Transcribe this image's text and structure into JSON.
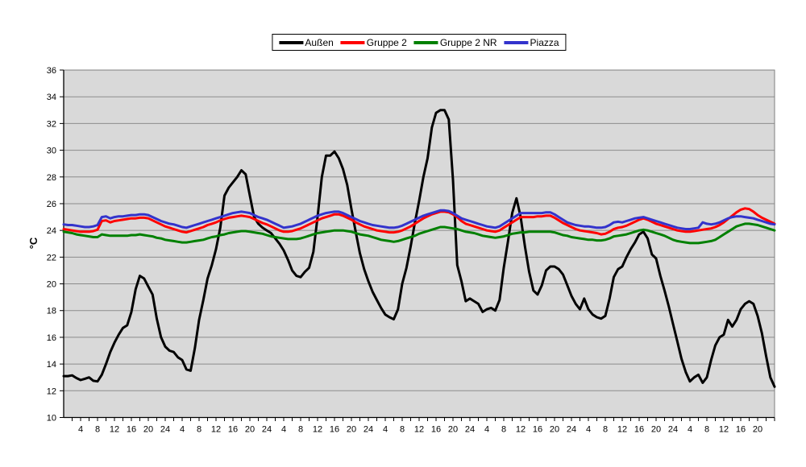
{
  "chart_data": {
    "type": "line",
    "title": "",
    "ylabel": "°C",
    "ylim": [
      10,
      36
    ],
    "ytick_step": 2,
    "xlim": [
      0,
      168
    ],
    "x_step_hours": 1,
    "x_minor_tick_hours": 2,
    "grid": "horizontal",
    "legend_position": "top-center",
    "colors": {
      "plot_bg": "#D9D9D9",
      "gridline": "#8C8C8C",
      "plot_border": "#7F7F7F",
      "axis": "#000000"
    },
    "xtick_hours": [
      4,
      8,
      12,
      16,
      20,
      24,
      28,
      32,
      36,
      40,
      44,
      48,
      52,
      56,
      60,
      64,
      68,
      72,
      76,
      80,
      84,
      88,
      92,
      96,
      100,
      104,
      108,
      112,
      116,
      120,
      124,
      128,
      132,
      136,
      140,
      144,
      148,
      152,
      156,
      160,
      164
    ],
    "xtick_labels": [
      "4",
      "8",
      "12",
      "16",
      "20",
      "24",
      "4",
      "8",
      "12",
      "16",
      "20",
      "24",
      "4",
      "8",
      "12",
      "16",
      "20",
      "24",
      "4",
      "8",
      "12",
      "16",
      "20",
      "24",
      "4",
      "8",
      "12",
      "16",
      "20",
      "24",
      "4",
      "8",
      "12",
      "16",
      "20",
      "24",
      "4",
      "8",
      "12",
      "16",
      "20"
    ],
    "ytick_labels": [
      "10",
      "12",
      "14",
      "16",
      "18",
      "20",
      "22",
      "24",
      "26",
      "28",
      "30",
      "32",
      "34",
      "36"
    ],
    "series": [
      {
        "name": "Außen",
        "color": "#000000",
        "values": [
          13.1,
          13.1,
          13.15,
          12.95,
          12.8,
          12.9,
          13.0,
          12.75,
          12.7,
          13.2,
          14.0,
          14.9,
          15.6,
          16.2,
          16.7,
          16.9,
          17.9,
          19.6,
          20.6,
          20.4,
          19.8,
          19.2,
          17.4,
          16.0,
          15.3,
          15.0,
          14.9,
          14.5,
          14.3,
          13.6,
          13.5,
          15.2,
          17.3,
          18.8,
          20.4,
          21.4,
          22.6,
          24.2,
          26.6,
          27.2,
          27.6,
          28.0,
          28.5,
          28.2,
          26.6,
          25.0,
          24.5,
          24.2,
          24.0,
          23.8,
          23.4,
          23.0,
          22.5,
          21.8,
          21.0,
          20.6,
          20.5,
          20.9,
          21.2,
          22.4,
          25.0,
          28.0,
          29.6,
          29.6,
          29.9,
          29.4,
          28.6,
          27.4,
          25.6,
          23.9,
          22.3,
          21.1,
          20.2,
          19.4,
          18.8,
          18.2,
          17.7,
          17.5,
          17.35,
          18.1,
          20.0,
          21.2,
          22.8,
          24.6,
          26.2,
          28.0,
          29.4,
          31.7,
          32.8,
          33.0,
          33.0,
          32.3,
          27.8,
          21.4,
          20.2,
          18.7,
          18.9,
          18.7,
          18.5,
          17.9,
          18.1,
          18.2,
          18.0,
          18.8,
          21.2,
          23.2,
          25.3,
          26.4,
          25.0,
          22.8,
          20.9,
          19.5,
          19.2,
          19.9,
          21.0,
          21.3,
          21.3,
          21.1,
          20.7,
          19.9,
          19.1,
          18.5,
          18.1,
          18.9,
          18.1,
          17.7,
          17.5,
          17.4,
          17.6,
          18.9,
          20.5,
          21.1,
          21.3,
          22.0,
          22.6,
          23.1,
          23.7,
          23.9,
          23.4,
          22.2,
          21.9,
          20.6,
          19.5,
          18.3,
          17.0,
          15.7,
          14.4,
          13.4,
          12.7,
          13.0,
          13.2,
          12.6,
          13.0,
          14.3,
          15.4,
          16.0,
          16.2,
          17.3,
          16.8,
          17.3,
          18.1,
          18.5,
          18.7,
          18.5,
          17.6,
          16.3,
          14.6,
          13.0,
          12.3
        ]
      },
      {
        "name": "Gruppe 2",
        "color": "#FF0000",
        "values": [
          24.1,
          24.05,
          24.0,
          23.95,
          23.9,
          23.9,
          23.9,
          23.95,
          24.05,
          24.7,
          24.75,
          24.6,
          24.7,
          24.75,
          24.8,
          24.85,
          24.9,
          24.9,
          24.95,
          24.95,
          24.9,
          24.75,
          24.6,
          24.45,
          24.3,
          24.2,
          24.1,
          24.0,
          23.9,
          23.85,
          23.95,
          24.05,
          24.15,
          24.25,
          24.4,
          24.5,
          24.6,
          24.75,
          24.85,
          24.95,
          25.0,
          25.05,
          25.1,
          25.05,
          25.0,
          24.85,
          24.7,
          24.55,
          24.45,
          24.3,
          24.15,
          24.0,
          23.9,
          23.9,
          23.95,
          24.05,
          24.15,
          24.3,
          24.45,
          24.6,
          24.75,
          24.9,
          25.0,
          25.1,
          25.2,
          25.2,
          25.1,
          24.95,
          24.8,
          24.6,
          24.45,
          24.3,
          24.2,
          24.1,
          24.0,
          23.95,
          23.9,
          23.85,
          23.85,
          23.9,
          24.0,
          24.15,
          24.3,
          24.5,
          24.7,
          24.9,
          25.05,
          25.2,
          25.3,
          25.4,
          25.4,
          25.35,
          25.2,
          25.0,
          24.7,
          24.5,
          24.4,
          24.3,
          24.2,
          24.1,
          24.0,
          23.95,
          23.9,
          24.0,
          24.2,
          24.4,
          24.6,
          24.8,
          25.0,
          25.0,
          25.0,
          25.0,
          25.05,
          25.05,
          25.1,
          25.1,
          24.95,
          24.75,
          24.55,
          24.4,
          24.25,
          24.1,
          24.0,
          23.95,
          23.9,
          23.85,
          23.8,
          23.7,
          23.75,
          23.9,
          24.1,
          24.2,
          24.25,
          24.35,
          24.5,
          24.65,
          24.8,
          24.9,
          24.8,
          24.65,
          24.5,
          24.4,
          24.3,
          24.2,
          24.1,
          24.0,
          23.95,
          23.9,
          23.9,
          23.95,
          24.0,
          24.05,
          24.1,
          24.15,
          24.25,
          24.4,
          24.6,
          24.85,
          25.1,
          25.35,
          25.55,
          25.65,
          25.6,
          25.4,
          25.15,
          24.95,
          24.8,
          24.65,
          24.5
        ]
      },
      {
        "name": "Gruppe 2 NR",
        "color": "#008000",
        "values": [
          23.9,
          23.85,
          23.8,
          23.7,
          23.65,
          23.6,
          23.55,
          23.5,
          23.5,
          23.7,
          23.65,
          23.6,
          23.6,
          23.6,
          23.6,
          23.6,
          23.65,
          23.65,
          23.7,
          23.65,
          23.6,
          23.55,
          23.45,
          23.4,
          23.3,
          23.25,
          23.2,
          23.15,
          23.1,
          23.1,
          23.15,
          23.2,
          23.25,
          23.3,
          23.4,
          23.5,
          23.55,
          23.65,
          23.7,
          23.8,
          23.85,
          23.9,
          23.95,
          23.95,
          23.9,
          23.85,
          23.8,
          23.75,
          23.65,
          23.55,
          23.5,
          23.45,
          23.4,
          23.35,
          23.35,
          23.35,
          23.4,
          23.5,
          23.6,
          23.7,
          23.8,
          23.85,
          23.9,
          23.95,
          24.0,
          24.0,
          24.0,
          23.95,
          23.9,
          23.8,
          23.7,
          23.65,
          23.6,
          23.5,
          23.4,
          23.3,
          23.25,
          23.2,
          23.15,
          23.2,
          23.3,
          23.4,
          23.5,
          23.6,
          23.75,
          23.85,
          23.95,
          24.05,
          24.15,
          24.25,
          24.25,
          24.2,
          24.15,
          24.1,
          24.0,
          23.9,
          23.85,
          23.8,
          23.7,
          23.6,
          23.55,
          23.5,
          23.45,
          23.5,
          23.55,
          23.65,
          23.75,
          23.8,
          23.85,
          23.85,
          23.9,
          23.9,
          23.9,
          23.9,
          23.9,
          23.9,
          23.85,
          23.75,
          23.65,
          23.6,
          23.5,
          23.45,
          23.4,
          23.35,
          23.3,
          23.3,
          23.25,
          23.25,
          23.3,
          23.4,
          23.55,
          23.6,
          23.65,
          23.7,
          23.8,
          23.9,
          24.0,
          24.05,
          24.0,
          23.9,
          23.8,
          23.7,
          23.6,
          23.45,
          23.3,
          23.2,
          23.15,
          23.1,
          23.05,
          23.05,
          23.05,
          23.1,
          23.15,
          23.2,
          23.3,
          23.5,
          23.7,
          23.9,
          24.1,
          24.3,
          24.4,
          24.5,
          24.5,
          24.45,
          24.4,
          24.3,
          24.2,
          24.1,
          24.0
        ]
      },
      {
        "name": "Piazza",
        "color": "#3333CC",
        "values": [
          24.45,
          24.4,
          24.4,
          24.35,
          24.3,
          24.25,
          24.25,
          24.3,
          24.4,
          25.0,
          25.05,
          24.9,
          25.0,
          25.05,
          25.05,
          25.1,
          25.15,
          25.15,
          25.2,
          25.2,
          25.15,
          25.0,
          24.85,
          24.7,
          24.6,
          24.5,
          24.45,
          24.35,
          24.25,
          24.2,
          24.3,
          24.4,
          24.5,
          24.6,
          24.7,
          24.8,
          24.9,
          25.0,
          25.1,
          25.2,
          25.3,
          25.35,
          25.4,
          25.35,
          25.3,
          25.15,
          25.0,
          24.9,
          24.8,
          24.65,
          24.5,
          24.35,
          24.2,
          24.25,
          24.3,
          24.4,
          24.5,
          24.65,
          24.8,
          24.95,
          25.1,
          25.2,
          25.3,
          25.35,
          25.4,
          25.4,
          25.3,
          25.15,
          25.0,
          24.85,
          24.7,
          24.6,
          24.5,
          24.4,
          24.35,
          24.3,
          24.25,
          24.2,
          24.2,
          24.25,
          24.35,
          24.5,
          24.65,
          24.8,
          24.95,
          25.1,
          25.2,
          25.3,
          25.4,
          25.5,
          25.5,
          25.45,
          25.3,
          25.1,
          24.9,
          24.8,
          24.7,
          24.6,
          24.5,
          24.4,
          24.3,
          24.25,
          24.2,
          24.3,
          24.5,
          24.7,
          24.9,
          25.1,
          25.3,
          25.3,
          25.3,
          25.3,
          25.3,
          25.3,
          25.35,
          25.35,
          25.2,
          25.0,
          24.8,
          24.6,
          24.5,
          24.4,
          24.35,
          24.3,
          24.3,
          24.25,
          24.2,
          24.2,
          24.25,
          24.4,
          24.6,
          24.65,
          24.6,
          24.7,
          24.8,
          24.9,
          24.95,
          25.0,
          24.9,
          24.8,
          24.7,
          24.6,
          24.5,
          24.4,
          24.3,
          24.2,
          24.15,
          24.1,
          24.1,
          24.15,
          24.2,
          24.6,
          24.5,
          24.45,
          24.5,
          24.6,
          24.75,
          24.9,
          25.0,
          25.05,
          25.05,
          25.0,
          24.95,
          24.9,
          24.8,
          24.7,
          24.6,
          24.5,
          24.45
        ]
      }
    ]
  }
}
